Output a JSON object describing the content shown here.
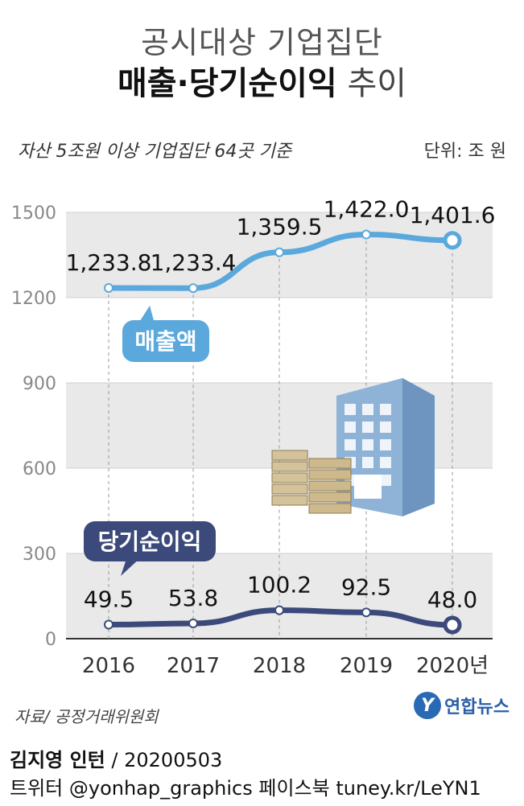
{
  "header": {
    "title_line1": "공시대상 기업집단",
    "title_bold": "매출·당기순이익",
    "title_light": " 추이",
    "subtitle": "자산 5조원 이상 기업집단 64곳 기준",
    "unit": "단위: 조 원"
  },
  "chart_data": {
    "type": "line",
    "x": [
      "2016",
      "2017",
      "2018",
      "2019",
      "2020년"
    ],
    "yticks": [
      "0",
      "300",
      "600",
      "900",
      "1200",
      "1500"
    ],
    "ylim": [
      0,
      1500
    ],
    "grid": "alternating bands",
    "series": [
      {
        "name": "매출액",
        "values": [
          1233.8,
          1233.4,
          1359.5,
          1422.0,
          1401.6
        ],
        "labels": [
          "1,233.8",
          "1,233.4",
          "1,359.5",
          "1,422.0",
          "1,401.6"
        ],
        "color": "#5aa8dc"
      },
      {
        "name": "당기순이익",
        "values": [
          49.5,
          53.8,
          100.2,
          92.5,
          48.0
        ],
        "labels": [
          "49.5",
          "53.8",
          "100.2",
          "92.5",
          "48.0"
        ],
        "color": "#3b4a7a"
      }
    ]
  },
  "footer": {
    "source": "자료/ 공정거래위원회",
    "logo_mark": "Y",
    "logo_name": "연합뉴스",
    "author_name": "김지영 인턴",
    "author_date": " / 20200503",
    "social": "트위터 @yonhap_graphics  페이스북 tuney.kr/LeYN1"
  }
}
